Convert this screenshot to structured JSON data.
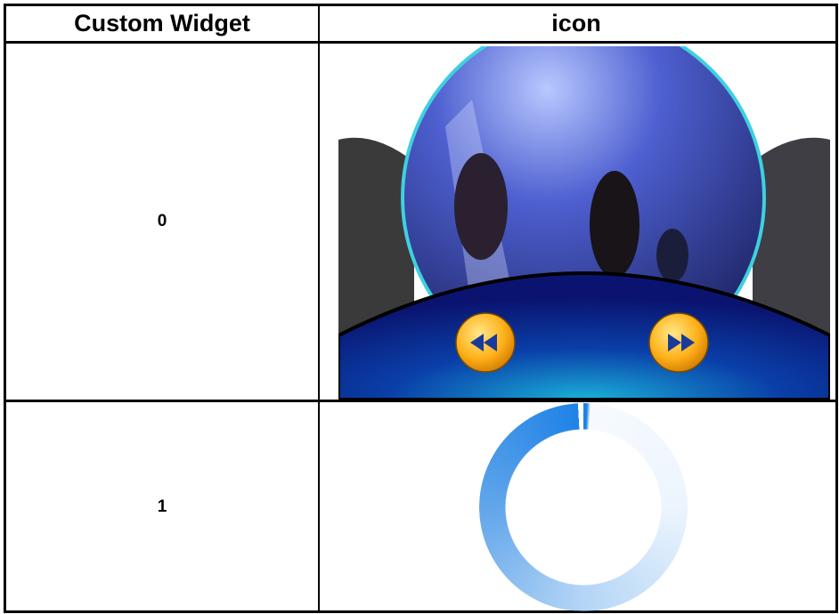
{
  "table": {
    "header": [
      "Custom Widget",
      "icon"
    ],
    "rows": [
      [
        "0"
      ],
      [
        "1"
      ]
    ]
  }
}
